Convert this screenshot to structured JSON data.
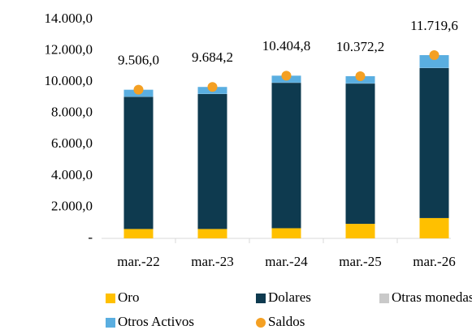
{
  "chart_data": {
    "type": "bar",
    "stacked": true,
    "categories": [
      "mar.-22",
      "mar.-23",
      "mar.-24",
      "mar.-25",
      "mar.-26"
    ],
    "series": [
      {
        "name": "Oro",
        "color": "#ffc000",
        "values": [
          600,
          600,
          650,
          930,
          1300
        ]
      },
      {
        "name": "Dolares",
        "color": "#0e3a4f",
        "values": [
          8450,
          8630,
          9300,
          8970,
          9590
        ]
      },
      {
        "name": "Otras monedas",
        "color": "#c9c9c9",
        "values": [
          10,
          10,
          10,
          10,
          10
        ]
      },
      {
        "name": "Otros Activos",
        "color": "#5aaee0",
        "values": [
          446,
          444.2,
          444.8,
          462.2,
          819.6
        ]
      },
      {
        "name": "Saldos",
        "type": "scatter",
        "color": "#f4a023",
        "values": [
          9506.0,
          9684.2,
          10404.8,
          10372.2,
          11719.6
        ],
        "value_labels": [
          "9.506,0",
          "9.684,2",
          "10.404,8",
          "10.372,2",
          "11.719,6"
        ]
      }
    ],
    "ylim": [
      0,
      14000
    ],
    "yticks": [
      {
        "value": 0,
        "label": "-"
      },
      {
        "value": 2000,
        "label": "2.000,0"
      },
      {
        "value": 4000,
        "label": "4.000,0"
      },
      {
        "value": 6000,
        "label": "6.000,0"
      },
      {
        "value": 8000,
        "label": "8.000,0"
      },
      {
        "value": 10000,
        "label": "10.000,0"
      },
      {
        "value": 12000,
        "label": "12.000,0"
      },
      {
        "value": 14000,
        "label": "14.000,0"
      }
    ]
  }
}
